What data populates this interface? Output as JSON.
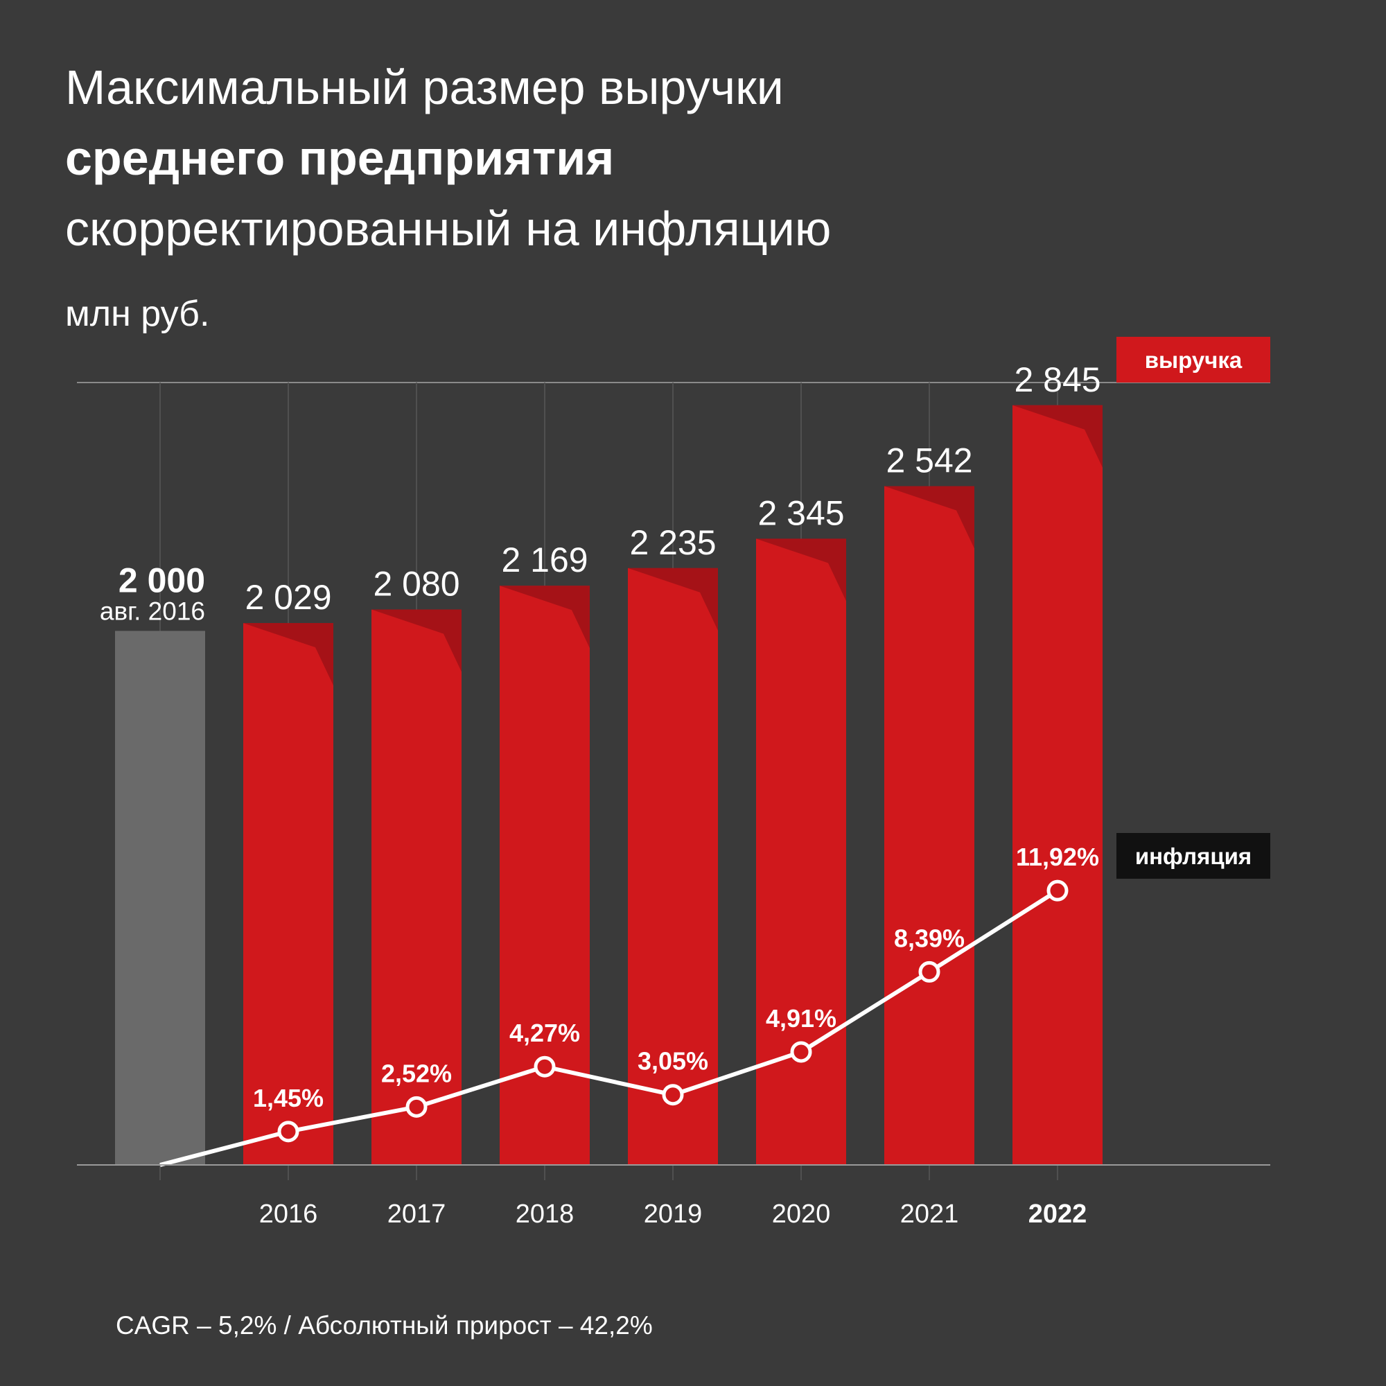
{
  "chart_data": {
    "type": "bar",
    "title": [
      "Максимальный размер выручки",
      "среднего предприятия",
      "скорректированный на инфляцию"
    ],
    "subtitle": "млн руб.",
    "categories": [
      null,
      "2016",
      "2017",
      "2018",
      "2019",
      "2020",
      "2021",
      "2022"
    ],
    "annotations": [
      "авг. 2016"
    ],
    "series": [
      {
        "name": "выручка",
        "type": "bar",
        "color": "#d0181c",
        "colors": [
          "#6a6a6a",
          "#d0181c",
          "#d0181c",
          "#d0181c",
          "#d0181c",
          "#d0181c",
          "#d0181c",
          "#d0181c"
        ],
        "values": [
          2000,
          2029,
          2080,
          2169,
          2235,
          2345,
          2542,
          2845
        ],
        "value_labels": [
          "2 000",
          "2 029",
          "2 080",
          "2 169",
          "2 235",
          "2 345",
          "2 542",
          "2 845"
        ]
      },
      {
        "name": "инфляция",
        "type": "line",
        "axis": "y2",
        "color": "#ffffff",
        "values": [
          0,
          1.45,
          2.52,
          4.27,
          3.05,
          4.91,
          8.39,
          11.92
        ],
        "value_labels": [
          null,
          "1,45%",
          "2,52%",
          "4,27%",
          "3,05%",
          "4,91%",
          "8,39%",
          "11,92%"
        ]
      }
    ],
    "ylim": [
      0,
      2930
    ],
    "y2lim": [
      0,
      34
    ],
    "footer": "CAGR – 5,2% /  Абсолютный прирост – 42,2%"
  }
}
